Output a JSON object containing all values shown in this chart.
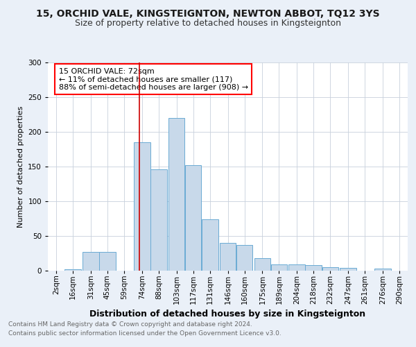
{
  "title": "15, ORCHID VALE, KINGSTEIGNTON, NEWTON ABBOT, TQ12 3YS",
  "subtitle": "Size of property relative to detached houses in Kingsteignton",
  "xlabel": "Distribution of detached houses by size in Kingsteignton",
  "ylabel": "Number of detached properties",
  "footer_line1": "Contains HM Land Registry data © Crown copyright and database right 2024.",
  "footer_line2": "Contains public sector information licensed under the Open Government Licence v3.0.",
  "annotation_line1": "15 ORCHID VALE: 72sqm",
  "annotation_line2": "← 11% of detached houses are smaller (117)",
  "annotation_line3": "88% of semi-detached houses are larger (908) →",
  "property_size": 72,
  "bar_color": "#c8d9ea",
  "bar_edge_color": "#6aaad4",
  "redline_color": "#cc0000",
  "categories": [
    "2sqm",
    "16sqm",
    "31sqm",
    "45sqm",
    "59sqm",
    "74sqm",
    "88sqm",
    "103sqm",
    "117sqm",
    "131sqm",
    "146sqm",
    "160sqm",
    "175sqm",
    "189sqm",
    "204sqm",
    "218sqm",
    "232sqm",
    "247sqm",
    "261sqm",
    "276sqm",
    "290sqm"
  ],
  "values": [
    0,
    2,
    27,
    27,
    0,
    185,
    146,
    220,
    152,
    74,
    40,
    37,
    18,
    9,
    9,
    8,
    5,
    4,
    0,
    3,
    0
  ],
  "bin_centers": [
    2,
    16,
    31,
    45,
    59,
    74,
    88,
    103,
    117,
    131,
    146,
    160,
    175,
    189,
    204,
    218,
    232,
    247,
    261,
    276,
    290
  ],
  "bin_width": 14,
  "ylim": [
    0,
    300
  ],
  "yticks": [
    0,
    50,
    100,
    150,
    200,
    250,
    300
  ],
  "background_color": "#eaf0f8",
  "plot_background": "#ffffff",
  "grid_color": "#c8d0dc",
  "title_fontsize": 10,
  "subtitle_fontsize": 9,
  "xlabel_fontsize": 9,
  "ylabel_fontsize": 8,
  "tick_fontsize": 7.5,
  "footer_fontsize": 6.5,
  "annotation_fontsize": 8
}
